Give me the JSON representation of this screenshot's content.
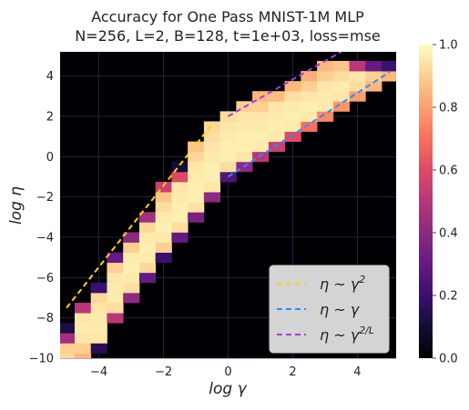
{
  "chart_data": {
    "type": "heatmap",
    "title": "Accuracy for One Pass MNIST-1M MLP",
    "subtitle": "N=256, L=2, B=128, t=1e+03, loss=mse",
    "xlabel": "log γ",
    "ylabel": "log η",
    "xlim": [
      -5.2,
      5.2
    ],
    "ylim": [
      -10,
      5.2
    ],
    "x_ticks": [
      -4,
      -2,
      0,
      2,
      4
    ],
    "x_tick_labels": [
      "−4",
      "−2",
      "0",
      "2",
      "4"
    ],
    "y_ticks": [
      -10,
      -8,
      -6,
      -4,
      -2,
      0,
      2,
      4
    ],
    "y_tick_labels": [
      "−10",
      "−8",
      "−6",
      "−4",
      "−2",
      "0",
      "2",
      "4"
    ],
    "grid": true,
    "cell_size": {
      "x": 0.5,
      "y": 0.5
    },
    "background_value": 0.0,
    "cells": [
      [
        -5.0,
        -10.0,
        0.92
      ],
      [
        -5.0,
        -9.5,
        0.9
      ],
      [
        -5.0,
        -9.0,
        0.45
      ],
      [
        -5.0,
        -8.5,
        0.12
      ],
      [
        -4.5,
        -10.0,
        0.85
      ],
      [
        -4.5,
        -9.5,
        0.9
      ],
      [
        -4.5,
        -9.0,
        0.95
      ],
      [
        -4.5,
        -8.5,
        0.96
      ],
      [
        -4.5,
        -8.0,
        0.95
      ],
      [
        -4.5,
        -7.5,
        0.5
      ],
      [
        -4.0,
        -9.5,
        0.15
      ],
      [
        -4.0,
        -9.0,
        0.95
      ],
      [
        -4.0,
        -8.5,
        0.96
      ],
      [
        -4.0,
        -8.0,
        0.96
      ],
      [
        -4.0,
        -7.5,
        0.95
      ],
      [
        -4.0,
        -7.0,
        0.92
      ],
      [
        -4.0,
        -6.5,
        0.2
      ],
      [
        -3.5,
        -8.0,
        0.5
      ],
      [
        -3.5,
        -7.5,
        0.93
      ],
      [
        -3.5,
        -7.0,
        0.96
      ],
      [
        -3.5,
        -6.5,
        0.96
      ],
      [
        -3.5,
        -6.0,
        0.95
      ],
      [
        -3.5,
        -5.5,
        0.9
      ],
      [
        -3.5,
        -5.0,
        0.3
      ],
      [
        -3.0,
        -7.0,
        0.4
      ],
      [
        -3.0,
        -6.5,
        0.93
      ],
      [
        -3.0,
        -6.0,
        0.96
      ],
      [
        -3.0,
        -5.5,
        0.97
      ],
      [
        -3.0,
        -5.0,
        0.96
      ],
      [
        -3.0,
        -4.5,
        0.9
      ],
      [
        -3.0,
        -4.0,
        0.4
      ],
      [
        -2.5,
        -6.0,
        0.3
      ],
      [
        -2.5,
        -5.5,
        0.92
      ],
      [
        -2.5,
        -5.0,
        0.96
      ],
      [
        -2.5,
        -4.5,
        0.97
      ],
      [
        -2.5,
        -4.0,
        0.96
      ],
      [
        -2.5,
        -3.5,
        0.92
      ],
      [
        -2.5,
        -3.0,
        0.45
      ],
      [
        -2.0,
        -5.0,
        0.2
      ],
      [
        -2.0,
        -4.5,
        0.9
      ],
      [
        -2.0,
        -4.0,
        0.96
      ],
      [
        -2.0,
        -3.5,
        0.97
      ],
      [
        -2.0,
        -3.0,
        0.96
      ],
      [
        -2.0,
        -2.5,
        0.93
      ],
      [
        -2.0,
        -2.0,
        0.88
      ],
      [
        -2.0,
        -1.5,
        0.55
      ],
      [
        -1.5,
        -4.0,
        0.3
      ],
      [
        -1.5,
        -3.5,
        0.93
      ],
      [
        -1.5,
        -3.0,
        0.97
      ],
      [
        -1.5,
        -2.5,
        0.97
      ],
      [
        -1.5,
        -2.0,
        0.96
      ],
      [
        -1.5,
        -1.5,
        0.95
      ],
      [
        -1.5,
        -1.0,
        0.6
      ],
      [
        -1.5,
        -0.5,
        0.1
      ],
      [
        -1.0,
        -3.0,
        0.35
      ],
      [
        -1.0,
        -2.5,
        0.94
      ],
      [
        -1.0,
        -2.0,
        0.97
      ],
      [
        -1.0,
        -1.5,
        0.97
      ],
      [
        -1.0,
        -1.0,
        0.96
      ],
      [
        -1.0,
        -0.5,
        0.95
      ],
      [
        -1.0,
        0.0,
        0.92
      ],
      [
        -1.0,
        0.5,
        0.88
      ],
      [
        -0.5,
        -2.0,
        0.4
      ],
      [
        -0.5,
        -1.5,
        0.95
      ],
      [
        -0.5,
        -1.0,
        0.97
      ],
      [
        -0.5,
        -0.5,
        0.97
      ],
      [
        -0.5,
        0.0,
        0.96
      ],
      [
        -0.5,
        0.5,
        0.95
      ],
      [
        -0.5,
        1.0,
        0.93
      ],
      [
        -0.5,
        1.5,
        0.92
      ],
      [
        0.0,
        -1.0,
        0.25
      ],
      [
        0.0,
        -0.5,
        0.93
      ],
      [
        0.0,
        0.0,
        0.97
      ],
      [
        0.0,
        0.5,
        0.97
      ],
      [
        0.0,
        1.0,
        0.96
      ],
      [
        0.0,
        1.5,
        0.95
      ],
      [
        0.0,
        2.0,
        0.93
      ],
      [
        0.5,
        -0.5,
        0.4
      ],
      [
        0.5,
        0.0,
        0.95
      ],
      [
        0.5,
        0.5,
        0.97
      ],
      [
        0.5,
        1.0,
        0.97
      ],
      [
        0.5,
        1.5,
        0.96
      ],
      [
        0.5,
        2.0,
        0.95
      ],
      [
        0.5,
        2.5,
        0.9
      ],
      [
        1.0,
        0.0,
        0.5
      ],
      [
        1.0,
        0.5,
        0.96
      ],
      [
        1.0,
        1.0,
        0.97
      ],
      [
        1.0,
        1.5,
        0.96
      ],
      [
        1.0,
        2.0,
        0.95
      ],
      [
        1.0,
        2.5,
        0.9
      ],
      [
        1.0,
        3.0,
        0.85
      ],
      [
        1.5,
        0.5,
        0.55
      ],
      [
        1.5,
        1.0,
        0.96
      ],
      [
        1.5,
        1.5,
        0.97
      ],
      [
        1.5,
        2.0,
        0.96
      ],
      [
        1.5,
        2.5,
        0.95
      ],
      [
        1.5,
        3.0,
        0.86
      ],
      [
        2.0,
        1.0,
        0.6
      ],
      [
        2.0,
        1.5,
        0.96
      ],
      [
        2.0,
        2.0,
        0.97
      ],
      [
        2.0,
        2.5,
        0.96
      ],
      [
        2.0,
        3.0,
        0.93
      ],
      [
        2.0,
        3.5,
        0.85
      ],
      [
        2.5,
        1.5,
        0.7
      ],
      [
        2.5,
        2.0,
        0.96
      ],
      [
        2.5,
        2.5,
        0.97
      ],
      [
        2.5,
        3.0,
        0.95
      ],
      [
        2.5,
        3.5,
        0.9
      ],
      [
        2.5,
        4.0,
        0.83
      ],
      [
        3.0,
        2.0,
        0.75
      ],
      [
        3.0,
        2.5,
        0.96
      ],
      [
        3.0,
        3.0,
        0.96
      ],
      [
        3.0,
        3.5,
        0.95
      ],
      [
        3.0,
        4.0,
        0.9
      ],
      [
        3.0,
        4.5,
        0.85
      ],
      [
        3.5,
        2.5,
        0.78
      ],
      [
        3.5,
        3.0,
        0.95
      ],
      [
        3.5,
        3.5,
        0.96
      ],
      [
        3.5,
        4.0,
        0.93
      ],
      [
        3.5,
        4.5,
        0.88
      ],
      [
        4.0,
        3.0,
        0.8
      ],
      [
        4.0,
        3.5,
        0.93
      ],
      [
        4.0,
        4.0,
        0.95
      ],
      [
        4.0,
        4.5,
        0.5
      ],
      [
        4.5,
        3.5,
        0.85
      ],
      [
        4.5,
        4.0,
        0.9
      ],
      [
        4.5,
        4.5,
        0.3
      ],
      [
        5.0,
        4.0,
        0.85
      ],
      [
        5.0,
        4.5,
        0.2
      ]
    ],
    "lines": [
      {
        "label": "η ~ γ²",
        "color": "#ffd11a",
        "dash": "dashed",
        "x": [
          -5.0,
          -0.5
        ],
        "y": [
          -7.5,
          1.6
        ]
      },
      {
        "label": "η ~ γ",
        "color": "#2b8cff",
        "dash": "dashed",
        "x": [
          0.0,
          5.0
        ],
        "y": [
          -1.0,
          4.2
        ]
      },
      {
        "label": "η ~ γ^{2/L}",
        "color": "#a23fd9",
        "dash": "dashed",
        "x": [
          0.0,
          3.5
        ],
        "y": [
          2.0,
          5.2
        ]
      }
    ],
    "legend": {
      "placement": "lower-right",
      "entries": [
        {
          "base": "η ~ γ",
          "sup": "2",
          "color": "#ffd11a"
        },
        {
          "base": "η ~ γ",
          "sup": "",
          "color": "#2b8cff"
        },
        {
          "base": "η ~ γ",
          "sup": "2/L",
          "color": "#a23fd9"
        }
      ]
    },
    "colorbar": {
      "colormap": "magma",
      "range": [
        0.0,
        1.0
      ],
      "ticks": [
        0.0,
        0.2,
        0.4,
        0.6,
        0.8,
        1.0
      ],
      "tick_labels": [
        "0.0",
        "0.2",
        "0.4",
        "0.6",
        "0.8",
        "1.0"
      ]
    }
  }
}
